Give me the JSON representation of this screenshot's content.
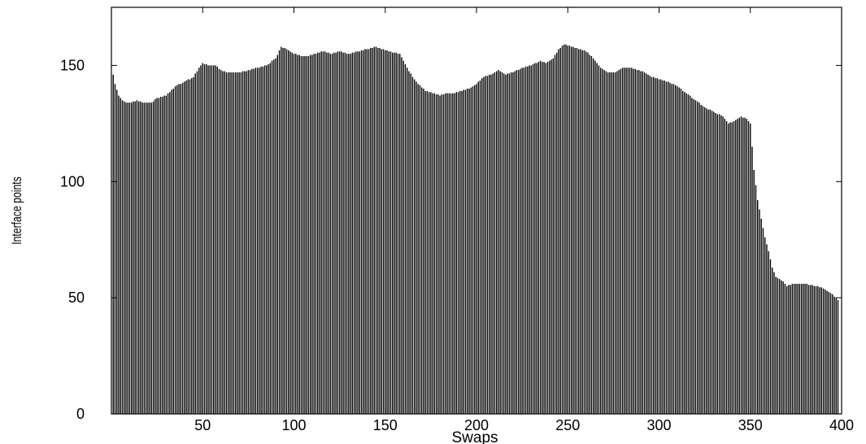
{
  "chart_data": {
    "type": "bar",
    "title": "",
    "xlabel": "Swaps",
    "ylabel": "Interface points",
    "xlim": [
      0,
      400
    ],
    "ylim": [
      0,
      175
    ],
    "xticks": [
      50,
      100,
      150,
      200,
      250,
      300,
      350,
      400
    ],
    "yticks": [
      0,
      50,
      100,
      150
    ],
    "grid": false,
    "legend": "none",
    "bar_color": "#000000",
    "series": [
      {
        "keypoints": [
          [
            1,
            146
          ],
          [
            2,
            142
          ],
          [
            4,
            137
          ],
          [
            6,
            135
          ],
          [
            8,
            134
          ],
          [
            11,
            134
          ],
          [
            14,
            135
          ],
          [
            17,
            134
          ],
          [
            22,
            134
          ],
          [
            25,
            136
          ],
          [
            30,
            137
          ],
          [
            35,
            141
          ],
          [
            40,
            143
          ],
          [
            45,
            145
          ],
          [
            48,
            149
          ],
          [
            50,
            151
          ],
          [
            53,
            150
          ],
          [
            57,
            150
          ],
          [
            60,
            148
          ],
          [
            63,
            147
          ],
          [
            70,
            147
          ],
          [
            76,
            148
          ],
          [
            80,
            149
          ],
          [
            85,
            150
          ],
          [
            90,
            153
          ],
          [
            93,
            158
          ],
          [
            96,
            157
          ],
          [
            100,
            155
          ],
          [
            104,
            154
          ],
          [
            108,
            154
          ],
          [
            112,
            155
          ],
          [
            116,
            156
          ],
          [
            120,
            155
          ],
          [
            125,
            156
          ],
          [
            130,
            155
          ],
          [
            135,
            156
          ],
          [
            140,
            157
          ],
          [
            145,
            158
          ],
          [
            148,
            157
          ],
          [
            152,
            156
          ],
          [
            158,
            155
          ],
          [
            162,
            149
          ],
          [
            165,
            145
          ],
          [
            168,
            142
          ],
          [
            172,
            139
          ],
          [
            176,
            138
          ],
          [
            180,
            137
          ],
          [
            184,
            138
          ],
          [
            188,
            138
          ],
          [
            192,
            139
          ],
          [
            196,
            140
          ],
          [
            200,
            142
          ],
          [
            204,
            145
          ],
          [
            208,
            146
          ],
          [
            212,
            148
          ],
          [
            216,
            146
          ],
          [
            220,
            147
          ],
          [
            225,
            149
          ],
          [
            230,
            150
          ],
          [
            235,
            152
          ],
          [
            238,
            151
          ],
          [
            242,
            153
          ],
          [
            245,
            157
          ],
          [
            248,
            159
          ],
          [
            252,
            158
          ],
          [
            256,
            157
          ],
          [
            260,
            156
          ],
          [
            264,
            153
          ],
          [
            268,
            149
          ],
          [
            272,
            147
          ],
          [
            276,
            147
          ],
          [
            280,
            149
          ],
          [
            284,
            149
          ],
          [
            288,
            148
          ],
          [
            292,
            147
          ],
          [
            296,
            145
          ],
          [
            300,
            144
          ],
          [
            305,
            143
          ],
          [
            310,
            141
          ],
          [
            315,
            138
          ],
          [
            320,
            135
          ],
          [
            325,
            132
          ],
          [
            330,
            130
          ],
          [
            335,
            128
          ],
          [
            338,
            125
          ],
          [
            341,
            126
          ],
          [
            345,
            128
          ],
          [
            348,
            127
          ],
          [
            350,
            125
          ],
          [
            352,
            105
          ],
          [
            354,
            92
          ],
          [
            356,
            84
          ],
          [
            358,
            76
          ],
          [
            360,
            70
          ],
          [
            362,
            63
          ],
          [
            364,
            59
          ],
          [
            366,
            58
          ],
          [
            368,
            57
          ],
          [
            370,
            55
          ],
          [
            374,
            56
          ],
          [
            380,
            56
          ],
          [
            386,
            55
          ],
          [
            390,
            54
          ],
          [
            394,
            52
          ],
          [
            397,
            50
          ],
          [
            398,
            49
          ]
        ]
      }
    ]
  }
}
